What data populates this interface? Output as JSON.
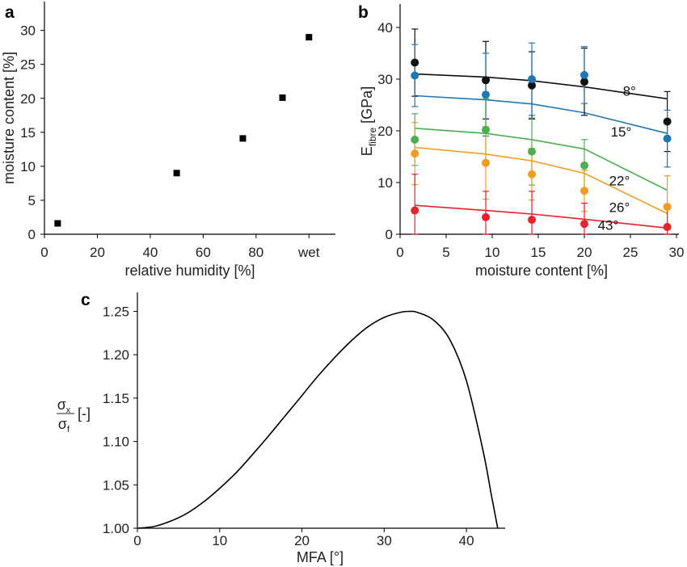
{
  "chart_data": [
    {
      "panel": "a",
      "type": "scatter",
      "xlabel": "relative humidity [%]",
      "ylabel": "moisture content [%]",
      "xlim": [
        0,
        110
      ],
      "ylim": [
        0,
        34
      ],
      "xticks": [
        {
          "value": 0,
          "label": "0"
        },
        {
          "value": 20,
          "label": "20"
        },
        {
          "value": 40,
          "label": "40"
        },
        {
          "value": 60,
          "label": "60"
        },
        {
          "value": 80,
          "label": "80"
        },
        {
          "value": 100,
          "label": "wet"
        }
      ],
      "yticks": [
        0,
        5,
        10,
        15,
        20,
        25,
        30
      ],
      "marker": "square",
      "color": "#000000",
      "points": [
        {
          "x": 5,
          "y": 1.6
        },
        {
          "x": 50,
          "y": 9.0
        },
        {
          "x": 75,
          "y": 14.1
        },
        {
          "x": 90,
          "y": 20.1
        },
        {
          "x": 100,
          "y": 29.0
        }
      ]
    },
    {
      "panel": "b",
      "type": "scatter",
      "xlabel": "moisture content [%]",
      "ylabel_main": "E",
      "ylabel_sub": "fibre",
      "ylabel_unit": " [GPa]",
      "xlim": [
        0,
        30
      ],
      "ylim": [
        0,
        45
      ],
      "xticks": [
        0,
        5,
        10,
        15,
        20,
        25,
        30
      ],
      "yticks": [
        0,
        10,
        20,
        30,
        40
      ],
      "x": [
        1.6,
        9.3,
        14.3,
        20,
        29
      ],
      "series": [
        {
          "name": "8°",
          "color": "#111111",
          "values": [
            33.2,
            29.8,
            28.8,
            29.5,
            21.8
          ],
          "err": [
            6.5,
            7.5,
            6.5,
            6.5,
            5.8
          ],
          "fit": [
            31.0,
            30.4,
            29.7,
            28.5,
            26.2
          ]
        },
        {
          "name": "15°",
          "color": "#1f78b4",
          "values": [
            30.7,
            27.0,
            30.0,
            30.8,
            18.5
          ],
          "err": [
            6,
            8,
            7,
            5.5,
            5.5
          ],
          "fit": [
            26.8,
            26.0,
            25.2,
            23.5,
            19.5
          ]
        },
        {
          "name": "22°",
          "color": "#4caf50",
          "values": [
            18.3,
            20.2,
            16.0,
            13.3,
            0
          ],
          "err": [
            5,
            6,
            6.5,
            5,
            0
          ],
          "fit": [
            20.5,
            19.5,
            18.3,
            16.5,
            8.5
          ]
        },
        {
          "name": "26°",
          "color": "#f39c1f",
          "values": [
            15.6,
            13.8,
            11.6,
            8.4,
            5.3
          ],
          "err": [
            6,
            7,
            5,
            4,
            6
          ],
          "fit": [
            16.8,
            15.5,
            14.2,
            11.8,
            4.0
          ]
        },
        {
          "name": "43°",
          "color": "#e8212b",
          "values": [
            4.6,
            3.3,
            2.8,
            2.0,
            1.4
          ],
          "err": [
            7,
            5,
            5.5,
            4,
            4
          ],
          "fit": [
            5.6,
            4.6,
            3.9,
            2.9,
            1.2
          ]
        }
      ]
    },
    {
      "panel": "c",
      "type": "line",
      "xlabel": "MFA [°]",
      "ylabel_num": "σ",
      "ylabel_num_sub": "x",
      "ylabel_den": "σ",
      "ylabel_den_sub": "f",
      "ylabel_unit": "[-]",
      "xlim": [
        0,
        45
      ],
      "ylim": [
        1.0,
        1.27
      ],
      "xticks": [
        0,
        10,
        20,
        30,
        40
      ],
      "yticks": [
        "1.00",
        "1.05",
        "1.10",
        "1.15",
        "1.20",
        "1.25"
      ],
      "color": "#000000",
      "x": [
        0,
        2,
        4,
        6,
        8,
        10,
        12,
        14,
        16,
        18,
        20,
        22,
        24,
        26,
        28,
        30,
        32,
        33.2,
        34,
        36,
        38,
        40,
        42,
        43,
        43.8
      ],
      "y": [
        1.0,
        1.002,
        1.008,
        1.017,
        1.03,
        1.046,
        1.064,
        1.085,
        1.107,
        1.13,
        1.153,
        1.176,
        1.197,
        1.216,
        1.232,
        1.243,
        1.249,
        1.25,
        1.249,
        1.24,
        1.217,
        1.17,
        1.09,
        1.04,
        1.0
      ]
    }
  ],
  "panel_labels": {
    "a": "a",
    "b": "b",
    "c": "c"
  }
}
